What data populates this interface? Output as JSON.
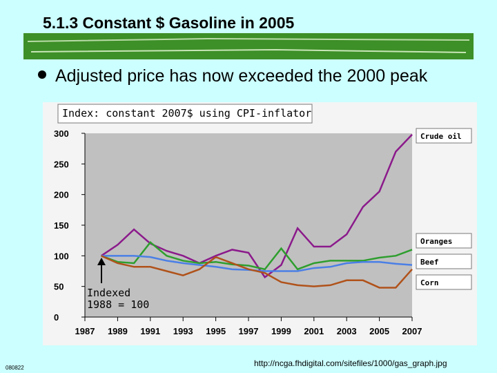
{
  "slide": {
    "title": "5.1.3  Constant $ Gasoline in 2005",
    "bullet": "Adjusted price has now exceeded the 2000 peak",
    "footer_code": "080822",
    "source_url": "http://ncga.fhdigital.com/sitefiles/1000/gas_graph.jpg"
  },
  "chart_data": {
    "type": "line",
    "title": "Index: constant 2007$ using CPI-inflator",
    "annotation": [
      "Indexed",
      "1988 = 100"
    ],
    "x": [
      1988,
      1989,
      1990,
      1991,
      1992,
      1993,
      1994,
      1995,
      1996,
      1997,
      1998,
      1999,
      2000,
      2001,
      2002,
      2003,
      2004,
      2005,
      2006,
      2007
    ],
    "series": [
      {
        "name": "Crude oil",
        "color": "#8b1a8b",
        "values": [
          100,
          118,
          143,
          120,
          108,
          100,
          88,
          100,
          110,
          105,
          65,
          85,
          145,
          115,
          115,
          135,
          180,
          205,
          270,
          298
        ]
      },
      {
        "name": "Oranges",
        "color": "#2e9e2e",
        "values": [
          100,
          90,
          88,
          122,
          100,
          92,
          88,
          90,
          86,
          84,
          78,
          112,
          78,
          88,
          92,
          92,
          92,
          97,
          100,
          110
        ]
      },
      {
        "name": "Beef",
        "color": "#4a7fe6",
        "values": [
          100,
          100,
          100,
          98,
          92,
          88,
          85,
          82,
          78,
          77,
          75,
          75,
          75,
          80,
          82,
          88,
          90,
          90,
          87,
          85
        ]
      },
      {
        "name": "Corn",
        "color": "#b0521a",
        "values": [
          100,
          88,
          82,
          82,
          75,
          68,
          78,
          98,
          88,
          78,
          72,
          57,
          52,
          50,
          52,
          60,
          60,
          48,
          48,
          78
        ]
      }
    ],
    "xlim": [
      1987,
      2007
    ],
    "xticks": [
      1987,
      1989,
      1991,
      1993,
      1995,
      1997,
      1999,
      2001,
      2003,
      2005,
      2007
    ],
    "ylim": [
      0,
      300
    ],
    "yticks": [
      0,
      50,
      100,
      150,
      200,
      250,
      300
    ]
  }
}
